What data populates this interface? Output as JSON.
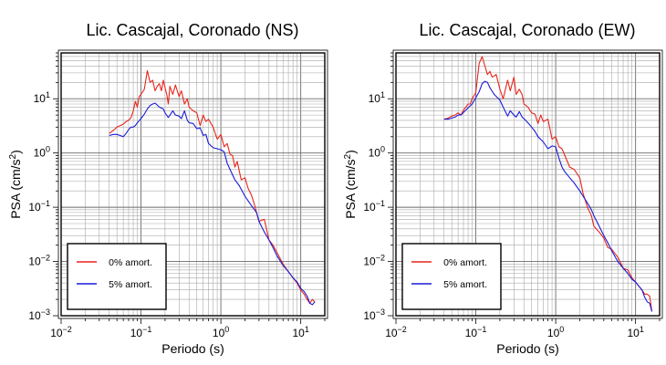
{
  "chart_data": [
    {
      "type": "line",
      "title": "Lic. Cascajal, Coronado (NS)",
      "xlabel": "Periodo (s)",
      "ylabel_main": "PSA (cm/s",
      "ylabel_sup": "2",
      "ylabel_tail": ")",
      "x_scale": "log",
      "y_scale": "log",
      "xlim": [
        0.01,
        20
      ],
      "ylim": [
        0.001,
        70
      ],
      "x_ticks": [
        {
          "value": 0.01,
          "base": "10",
          "exp": "−2"
        },
        {
          "value": 0.1,
          "base": "10",
          "exp": "−1"
        },
        {
          "value": 1,
          "base": "10",
          "exp": "0"
        },
        {
          "value": 10,
          "base": "10",
          "exp": "1"
        }
      ],
      "y_ticks": [
        {
          "value": 0.001,
          "base": "10",
          "exp": "−3"
        },
        {
          "value": 0.01,
          "base": "10",
          "exp": "−2"
        },
        {
          "value": 0.1,
          "base": "10",
          "exp": "−1"
        },
        {
          "value": 1,
          "base": "10",
          "exp": "0"
        },
        {
          "value": 10,
          "base": "10",
          "exp": "1"
        }
      ],
      "grid": true,
      "legend_position": "bottom-left",
      "series": [
        {
          "name": "0% amort.",
          "color": "#e8251c",
          "x": [
            0.04,
            0.045,
            0.05,
            0.055,
            0.06,
            0.065,
            0.07,
            0.075,
            0.08,
            0.085,
            0.09,
            0.095,
            0.1,
            0.11,
            0.12,
            0.13,
            0.14,
            0.15,
            0.16,
            0.17,
            0.18,
            0.19,
            0.2,
            0.21,
            0.22,
            0.23,
            0.25,
            0.27,
            0.3,
            0.32,
            0.35,
            0.38,
            0.4,
            0.45,
            0.5,
            0.55,
            0.6,
            0.65,
            0.7,
            0.8,
            0.9,
            1.0,
            1.1,
            1.2,
            1.3,
            1.4,
            1.5,
            1.6,
            1.8,
            2.0,
            2.2,
            2.4,
            2.6,
            2.8,
            3.0,
            3.5,
            4.0,
            4.5,
            5.0,
            6.0,
            7.0,
            8.0,
            9.0,
            10.0,
            11.0,
            12.0,
            13.0,
            14.0,
            15.0
          ],
          "y": [
            2.3,
            2.6,
            3.0,
            3.2,
            3.4,
            3.8,
            4.0,
            4.5,
            6.0,
            9.0,
            7.0,
            11.0,
            12.0,
            15.0,
            33.0,
            20.0,
            22.0,
            14.0,
            17.0,
            19.0,
            14.0,
            22.0,
            16.0,
            12.0,
            8.0,
            17.0,
            12.0,
            18.0,
            11.0,
            14.0,
            8.0,
            10.0,
            7.0,
            6.0,
            5.5,
            3.2,
            5.0,
            3.8,
            4.2,
            3.0,
            1.8,
            2.2,
            1.3,
            1.5,
            0.95,
            0.9,
            0.55,
            0.7,
            0.32,
            0.35,
            0.22,
            0.17,
            0.12,
            0.08,
            0.055,
            0.06,
            0.025,
            0.02,
            0.015,
            0.009,
            0.0065,
            0.005,
            0.004,
            0.003,
            0.0025,
            0.002,
            0.0017,
            0.002,
            0.0018
          ]
        },
        {
          "name": "5% amort.",
          "color": "#1a1ad8",
          "x": [
            0.04,
            0.045,
            0.05,
            0.055,
            0.06,
            0.065,
            0.07,
            0.075,
            0.08,
            0.085,
            0.09,
            0.1,
            0.11,
            0.12,
            0.13,
            0.14,
            0.15,
            0.17,
            0.19,
            0.2,
            0.22,
            0.25,
            0.27,
            0.3,
            0.32,
            0.35,
            0.38,
            0.4,
            0.45,
            0.5,
            0.55,
            0.6,
            0.65,
            0.7,
            0.8,
            0.9,
            1.0,
            1.1,
            1.2,
            1.3,
            1.5,
            1.7,
            2.0,
            2.2,
            2.5,
            2.8,
            3.0,
            3.5,
            4.0,
            4.5,
            5.0,
            6.0,
            7.0,
            8.0,
            9.0,
            10.0,
            11.0,
            12.0,
            13.0,
            14.0,
            15.0
          ],
          "y": [
            2.1,
            2.2,
            2.2,
            2.1,
            2.0,
            2.3,
            2.7,
            3.0,
            3.0,
            3.2,
            3.6,
            4.3,
            5.2,
            6.5,
            7.5,
            8.0,
            8.3,
            7.0,
            6.5,
            5.5,
            4.5,
            6.0,
            5.0,
            4.8,
            4.3,
            6.0,
            4.0,
            3.6,
            3.5,
            2.8,
            2.9,
            2.1,
            2.2,
            1.5,
            1.25,
            1.2,
            1.15,
            1.05,
            0.65,
            0.5,
            0.32,
            0.25,
            0.16,
            0.13,
            0.1,
            0.08,
            0.055,
            0.035,
            0.025,
            0.018,
            0.013,
            0.0085,
            0.0065,
            0.005,
            0.0042,
            0.0032,
            0.0028,
            0.0023,
            0.0017,
            0.0016,
            0.0018
          ]
        }
      ]
    },
    {
      "type": "line",
      "title": "Lic. Cascajal, Coronado (EW)",
      "xlabel": "Periodo (s)",
      "ylabel_main": "PSA (cm/s",
      "ylabel_sup": "2",
      "ylabel_tail": ")",
      "x_scale": "log",
      "y_scale": "log",
      "xlim": [
        0.01,
        20
      ],
      "ylim": [
        0.001,
        70
      ],
      "x_ticks": [
        {
          "value": 0.01,
          "base": "10",
          "exp": "−2"
        },
        {
          "value": 0.1,
          "base": "10",
          "exp": "−1"
        },
        {
          "value": 1,
          "base": "10",
          "exp": "0"
        },
        {
          "value": 10,
          "base": "10",
          "exp": "1"
        }
      ],
      "y_ticks": [
        {
          "value": 0.001,
          "base": "10",
          "exp": "−3"
        },
        {
          "value": 0.01,
          "base": "10",
          "exp": "−2"
        },
        {
          "value": 0.1,
          "base": "10",
          "exp": "−1"
        },
        {
          "value": 1,
          "base": "10",
          "exp": "0"
        },
        {
          "value": 10,
          "base": "10",
          "exp": "1"
        }
      ],
      "grid": true,
      "legend_position": "bottom-left",
      "series": [
        {
          "name": "0% amort.",
          "color": "#e8251c",
          "x": [
            0.04,
            0.045,
            0.05,
            0.055,
            0.06,
            0.065,
            0.07,
            0.075,
            0.08,
            0.085,
            0.09,
            0.1,
            0.11,
            0.12,
            0.13,
            0.14,
            0.15,
            0.16,
            0.18,
            0.2,
            0.22,
            0.25,
            0.27,
            0.3,
            0.32,
            0.35,
            0.38,
            0.4,
            0.45,
            0.5,
            0.55,
            0.6,
            0.65,
            0.7,
            0.8,
            0.9,
            1.0,
            1.1,
            1.2,
            1.3,
            1.5,
            1.7,
            2.0,
            2.2,
            2.5,
            2.8,
            3.0,
            3.5,
            4.0,
            4.5,
            5.0,
            6.0,
            7.0,
            8.0,
            9.0,
            10.0,
            11.0,
            12.0,
            13.0,
            14.0,
            15.0,
            16.0
          ],
          "y": [
            4.2,
            4.4,
            4.8,
            5.0,
            5.5,
            5.0,
            6.2,
            7.0,
            8.0,
            8.0,
            10.0,
            13.0,
            45.0,
            60.0,
            40.0,
            28.0,
            32.0,
            25.0,
            28.0,
            15.0,
            10.0,
            22.0,
            14.0,
            25.0,
            12.0,
            15.0,
            12.0,
            8.0,
            7.0,
            5.5,
            5.2,
            3.5,
            5.0,
            3.8,
            4.2,
            1.8,
            2.0,
            1.3,
            1.2,
            0.9,
            0.55,
            0.5,
            0.35,
            0.18,
            0.1,
            0.07,
            0.045,
            0.035,
            0.027,
            0.018,
            0.017,
            0.012,
            0.0075,
            0.007,
            0.005,
            0.0042,
            0.0035,
            0.003,
            0.0025,
            0.0025,
            0.0023,
            0.0012
          ]
        },
        {
          "name": "5% amort.",
          "color": "#1a1ad8",
          "x": [
            0.04,
            0.045,
            0.05,
            0.055,
            0.06,
            0.065,
            0.07,
            0.075,
            0.08,
            0.085,
            0.09,
            0.1,
            0.11,
            0.12,
            0.13,
            0.14,
            0.15,
            0.17,
            0.2,
            0.22,
            0.25,
            0.27,
            0.3,
            0.32,
            0.35,
            0.38,
            0.4,
            0.45,
            0.5,
            0.55,
            0.6,
            0.7,
            0.8,
            0.9,
            1.0,
            1.1,
            1.2,
            1.3,
            1.5,
            1.7,
            2.0,
            2.2,
            2.5,
            2.8,
            3.0,
            3.5,
            4.0,
            4.5,
            5.0,
            6.0,
            7.0,
            8.0,
            9.0,
            10.0,
            11.0,
            12.0,
            13.0,
            14.0,
            15.0,
            16.0
          ],
          "y": [
            4.2,
            4.2,
            4.4,
            4.6,
            5.0,
            5.0,
            5.6,
            6.2,
            6.8,
            7.4,
            8.0,
            10.5,
            13.5,
            19.0,
            21.0,
            20.0,
            16.0,
            12.0,
            9.5,
            7.0,
            4.8,
            6.0,
            5.0,
            4.6,
            5.8,
            4.6,
            4.3,
            3.6,
            3.0,
            2.5,
            2.0,
            1.6,
            1.2,
            1.35,
            1.3,
            0.8,
            0.55,
            0.45,
            0.35,
            0.28,
            0.2,
            0.16,
            0.12,
            0.09,
            0.07,
            0.045,
            0.03,
            0.022,
            0.016,
            0.01,
            0.0075,
            0.006,
            0.0047,
            0.0042,
            0.0035,
            0.003,
            0.0022,
            0.0018,
            0.0017,
            0.0012
          ]
        }
      ]
    }
  ]
}
